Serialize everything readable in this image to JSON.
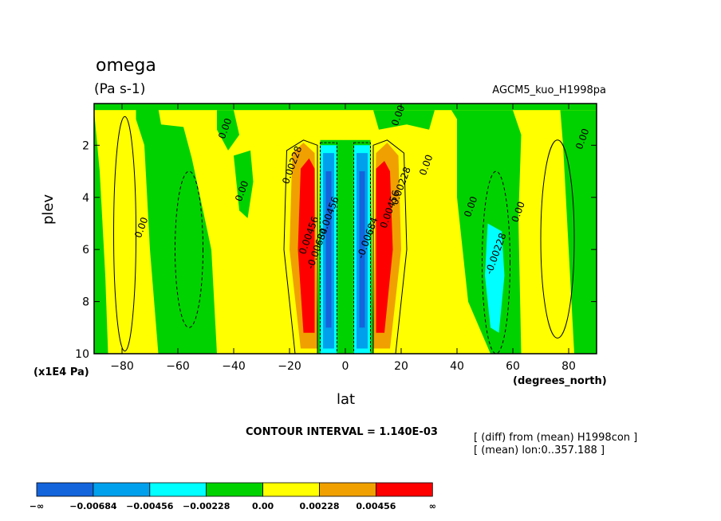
{
  "chart_data": {
    "type": "contour",
    "title": "omega",
    "units": "(Pa s-1)",
    "experiment": "AGCM5_kuo_H1998pa",
    "xlabel": "lat",
    "xunits": "(degrees_north)",
    "ylabel": "plev",
    "yunits": "(x1E4 Pa)",
    "xlim": [
      -90,
      90
    ],
    "ylim": [
      10,
      0.4
    ],
    "x_ticks": [
      -80,
      -60,
      -40,
      -20,
      0,
      20,
      40,
      60,
      80
    ],
    "x_tick_labels": [
      "−80",
      "−60",
      "−40",
      "−20",
      "0",
      "20",
      "40",
      "60",
      "80"
    ],
    "y_ticks": [
      2,
      4,
      6,
      8,
      10
    ],
    "y_tick_labels": [
      "2",
      "4",
      "6",
      "8",
      "10"
    ],
    "contour_interval_text": "CONTOUR INTERVAL = 1.140E-03",
    "info_lines": [
      "[ (diff) from (mean) H1998con ]",
      "[ (mean) lon:0..357.188 ]"
    ],
    "contour_labels": [
      {
        "text": "0.00",
        "lat": -42,
        "plev": 1.4
      },
      {
        "text": "0.00",
        "lat": 20,
        "plev": 0.9
      },
      {
        "text": "0.00",
        "lat": 86,
        "plev": 1.8
      },
      {
        "text": "0.00",
        "lat": -36,
        "plev": 3.8
      },
      {
        "text": "0.00228",
        "lat": -18,
        "plev": 2.8
      },
      {
        "text": "0.00228",
        "lat": 21,
        "plev": 3.6
      },
      {
        "text": "0.00",
        "lat": 30,
        "plev": 2.8
      },
      {
        "text": "0.00",
        "lat": -72,
        "plev": 5.2
      },
      {
        "text": "0.00",
        "lat": 46,
        "plev": 4.4
      },
      {
        "text": "0.00",
        "lat": 63,
        "plev": 4.6
      },
      {
        "text": "0.00456",
        "lat": 17,
        "plev": 4.5
      },
      {
        "text": "0.00456",
        "lat": -12,
        "plev": 5.5
      },
      {
        "text": "-0.00228",
        "lat": 55,
        "plev": 6.2
      },
      {
        "text": "-0.00684",
        "lat": -9,
        "plev": 6.0
      },
      {
        "text": "-0.00684",
        "lat": 9,
        "plev": 5.6
      },
      {
        "text": "-0.00456",
        "lat": -5,
        "plev": 4.8
      }
    ],
    "color_bar": {
      "labels": [
        "−∞",
        "−0.00684",
        "−0.00456",
        "−0.00228",
        "0.00",
        "0.00228",
        "0.00456",
        "∞"
      ],
      "colors": [
        "#1464dc",
        "#00a0ec",
        "#00ffff",
        "#00d200",
        "#ffff00",
        "#f0a000",
        "#ff0000"
      ]
    },
    "field_colors": {
      "neg3": "#1464dc",
      "neg2": "#00a0ec",
      "neg1": "#00ffff",
      "neg0": "#00d200",
      "pos0": "#ffff00",
      "pos1": "#f0a000",
      "pos2": "#ff0000"
    }
  }
}
